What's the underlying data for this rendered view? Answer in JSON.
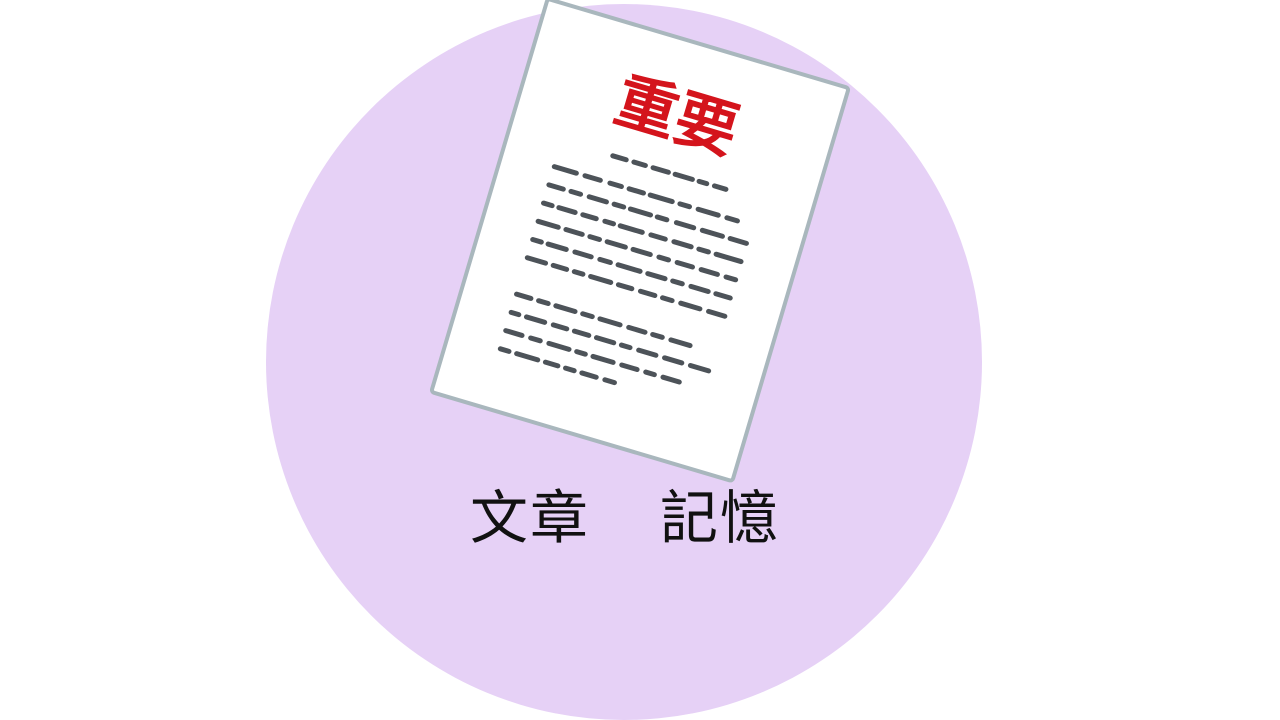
{
  "caption": {
    "word_1": "文章",
    "word_2": "記憶"
  },
  "document_illustration": {
    "stamp_text": "重要",
    "stamp_color": "#d4141c",
    "paper_color": "#ffffff",
    "paper_border_color": "#a9b7bd",
    "text_line_color": "#4d5359"
  },
  "colors": {
    "circle_background": "#e6d1f6",
    "page_background": "#ffffff"
  }
}
